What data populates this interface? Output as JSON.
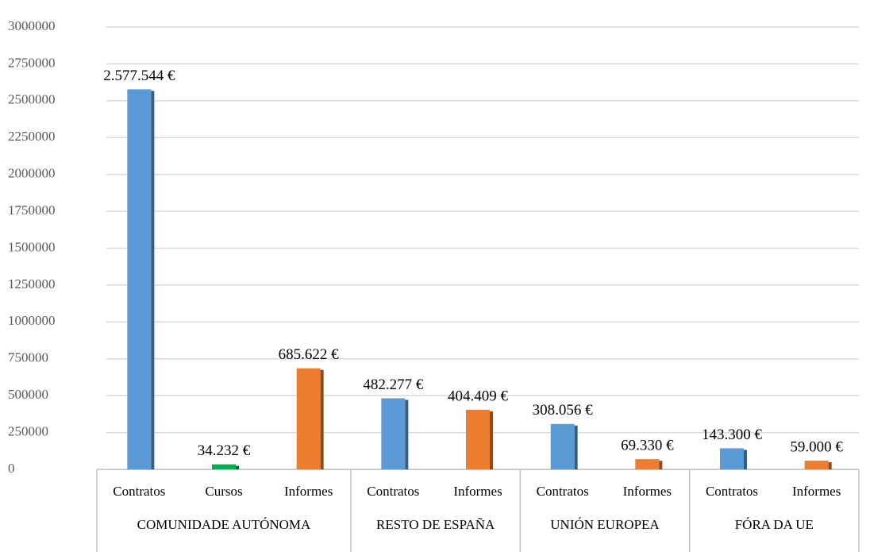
{
  "chart_data": {
    "type": "bar",
    "categories": [
      "Contratos",
      "Cursos",
      "Informes",
      "Contratos",
      "Informes",
      "Contratos",
      "Informes",
      "Contratos",
      "Informes"
    ],
    "groups": [
      {
        "name": "COMUNIDADE AUTÓNOMA",
        "span": 3
      },
      {
        "name": "RESTO DE ESPAÑA",
        "span": 2
      },
      {
        "name": "UNIÓN EUROPEA",
        "span": 2
      },
      {
        "name": "FÓRA DA UE",
        "span": 2
      }
    ],
    "values": [
      2577544,
      34232,
      685622,
      482277,
      404409,
      308056,
      69330,
      143300,
      59000
    ],
    "value_labels": [
      "2.577.544 €",
      "34.232 €",
      "685.622 €",
      "482.277 €",
      "404.409 €",
      "308.056 €",
      "69.330 €",
      "143.300 €",
      "59.000 €"
    ],
    "colors": [
      "#5b9bd5",
      "#00b050",
      "#ed7d31",
      "#5b9bd5",
      "#ed7d31",
      "#5b9bd5",
      "#ed7d31",
      "#5b9bd5",
      "#ed7d31"
    ],
    "ylim": [
      0,
      3000000
    ],
    "yticks": [
      0,
      250000,
      500000,
      750000,
      1000000,
      1250000,
      1500000,
      1750000,
      2000000,
      2250000,
      2500000,
      2750000,
      3000000
    ],
    "grid": true
  }
}
